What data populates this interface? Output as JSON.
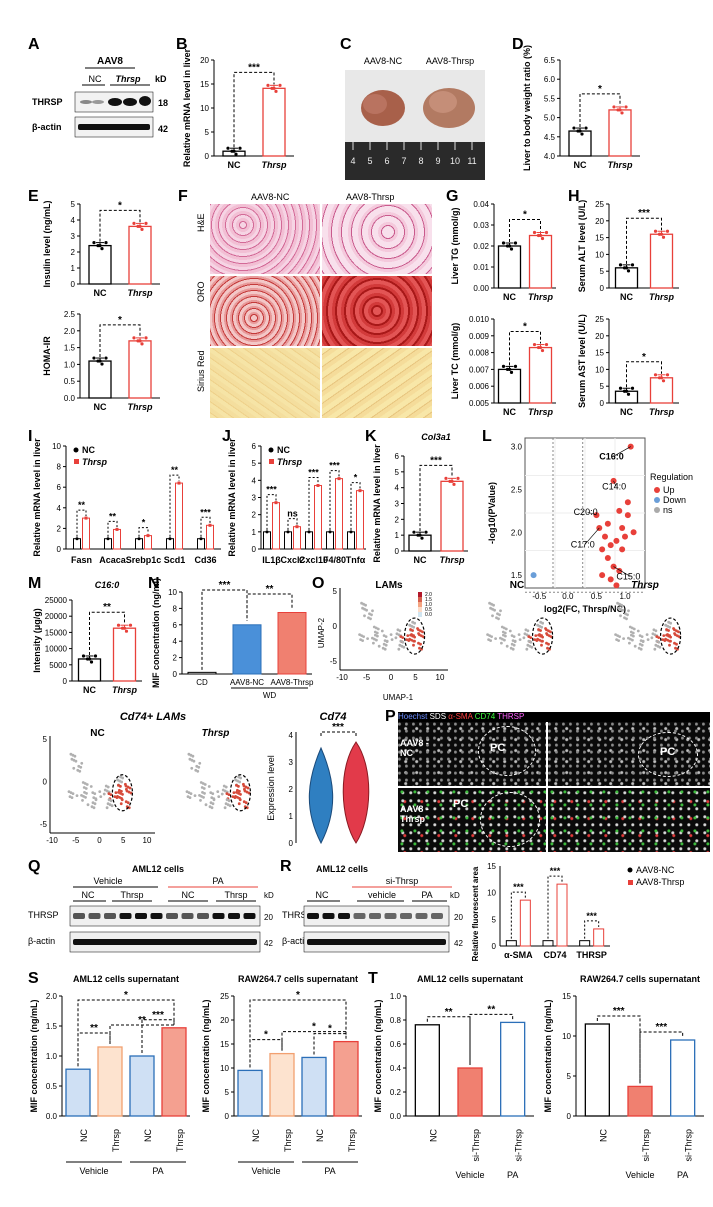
{
  "panels": {
    "A": {
      "label": "A",
      "group": "AAV8",
      "nc": "NC",
      "thrsp": "Thrsp",
      "kd": "kD",
      "rows": [
        {
          "name": "THRSP",
          "kd": "18"
        },
        {
          "name": "β-actin",
          "kd": "42"
        }
      ]
    },
    "B": {
      "label": "B",
      "ylabel": "Relative mRNA level in liver",
      "sig": "***",
      "categories": [
        "NC",
        "Thrsp"
      ],
      "values": [
        1,
        14.1
      ],
      "ylim": [
        0,
        20
      ],
      "yticks": [
        "0",
        "5",
        "10",
        "15",
        "20"
      ]
    },
    "C": {
      "label": "C",
      "left_title": "AAV8-NC",
      "right_title": "AAV8-Thrsp",
      "ruler": [
        "4",
        "5",
        "6",
        "7",
        "8",
        "9",
        "10",
        "11"
      ]
    },
    "D": {
      "label": "D",
      "ylabel": "Liver to body weight ratio (%)",
      "sig": "*",
      "categories": [
        "NC",
        "Thrsp"
      ],
      "values": [
        4.65,
        5.2
      ],
      "ylim": [
        4.0,
        6.5
      ],
      "yticks": [
        "4.0",
        "4.5",
        "5.0",
        "5.5",
        "6.0",
        "6.5"
      ]
    },
    "E": {
      "label": "E",
      "top": {
        "ylabel": "Insulin level (ng/mL)",
        "sig": "*",
        "categories": [
          "NC",
          "Thrsp"
        ],
        "values": [
          2.4,
          3.6
        ],
        "ylim": [
          0,
          5
        ],
        "yticks": [
          "0",
          "1",
          "2",
          "3",
          "4",
          "5"
        ]
      },
      "bottom": {
        "ylabel": "HOMA-IR",
        "sig": "*",
        "categories": [
          "NC",
          "Thrsp"
        ],
        "values": [
          1.1,
          1.7
        ],
        "ylim": [
          0,
          2.5
        ],
        "yticks": [
          "0.0",
          "0.5",
          "1.0",
          "1.5",
          "2.0",
          "2.5"
        ]
      }
    },
    "F": {
      "label": "F",
      "left_title": "AAV8-NC",
      "right_title": "AAV8-Thrsp",
      "rows": [
        "H&E",
        "ORO",
        "Sirius Red"
      ]
    },
    "G": {
      "label": "G",
      "top": {
        "ylabel": "Liver TG (mmol/g)",
        "sig": "*",
        "categories": [
          "NC",
          "Thrsp"
        ],
        "values": [
          0.02,
          0.025
        ],
        "ylim": [
          0,
          0.04
        ],
        "yticks": [
          "0.00",
          "0.01",
          "0.02",
          "0.03",
          "0.04"
        ]
      },
      "bottom": {
        "ylabel": "Liver TC (mmol/g)",
        "sig": "*",
        "categories": [
          "NC",
          "Thrsp"
        ],
        "values": [
          0.007,
          0.0083
        ],
        "ylim": [
          0.005,
          0.01
        ],
        "yticks": [
          "0.005",
          "0.006",
          "0.007",
          "0.008",
          "0.009",
          "0.010"
        ]
      }
    },
    "H": {
      "label": "H",
      "top": {
        "ylabel": "Serum ALT level (U/L)",
        "sig": "***",
        "categories": [
          "NC",
          "Thrsp"
        ],
        "values": [
          6,
          16
        ],
        "ylim": [
          0,
          25
        ],
        "yticks": [
          "0",
          "5",
          "10",
          "15",
          "20",
          "25"
        ]
      },
      "bottom": {
        "ylabel": "Serum AST level (U/L)",
        "sig": "*",
        "categories": [
          "NC",
          "Thrsp"
        ],
        "values": [
          3.5,
          7.5
        ],
        "ylim": [
          0,
          25
        ],
        "yticks": [
          "0",
          "5",
          "10",
          "15",
          "20",
          "25"
        ]
      }
    },
    "I": {
      "label": "I",
      "ylabel": "Relative mRNA level in liver",
      "legend": [
        "NC",
        "Thrsp"
      ],
      "categories": [
        "Fasn",
        "Acaca",
        "Srebp1c",
        "Scd1",
        "Cd36"
      ],
      "nc": [
        1,
        1,
        1,
        1,
        1
      ],
      "thrsp": [
        3,
        1.9,
        1.3,
        6.4,
        2.3
      ],
      "sig": [
        "**",
        "**",
        "*",
        "**",
        "***"
      ],
      "ylim": [
        0,
        10
      ],
      "yticks": [
        "0",
        "2",
        "4",
        "6",
        "8",
        "10"
      ]
    },
    "J": {
      "label": "J",
      "ylabel": "Relative mRNA level in liver",
      "legend": [
        "NC",
        "Thrsp"
      ],
      "categories": [
        "IL1β",
        "Cxcl2",
        "Cxcl10",
        "F4/80",
        "Tnfα"
      ],
      "nc": [
        1,
        1,
        1,
        1,
        1
      ],
      "thrsp": [
        2.7,
        1.3,
        3.7,
        4.1,
        3.4
      ],
      "sig": [
        "***",
        "ns",
        "***",
        "***",
        "*"
      ],
      "ylim": [
        0,
        6
      ],
      "yticks": [
        "0",
        "1",
        "2",
        "3",
        "4",
        "5",
        "6"
      ]
    },
    "K": {
      "label": "K",
      "title": "Col3a1",
      "ylabel": "Relative mRNA level in liver",
      "sig": "***",
      "categories": [
        "NC",
        "Thrsp"
      ],
      "values": [
        1,
        4.4
      ],
      "ylim": [
        0,
        6
      ],
      "yticks": [
        "0",
        "1",
        "2",
        "3",
        "4",
        "5",
        "6"
      ]
    },
    "L": {
      "label": "L",
      "xlabel": "log2(FC, Thrsp/NC)",
      "ylabel": "-log10(PValue)",
      "legend_title": "Regulation",
      "legend": [
        "Up",
        "Down",
        "ns"
      ],
      "annotations": [
        "C16:0",
        "C14:0",
        "C20:0",
        "C17:0",
        "C15:0"
      ],
      "xticks": [
        "-0.5",
        "0.0",
        "0.5",
        "1.0"
      ],
      "yticks": [
        "1.5",
        "2.0",
        "2.5",
        "3.0"
      ]
    },
    "M": {
      "label": "M",
      "title": "C16:0",
      "ylabel": "Intensity (μg/g)",
      "sig": "**",
      "categories": [
        "NC",
        "Thrsp"
      ],
      "values": [
        6800,
        16300
      ],
      "ylim": [
        0,
        25000
      ],
      "yticks": [
        "0",
        "5000",
        "10000",
        "15000",
        "20000",
        "25000"
      ]
    },
    "N": {
      "label": "N",
      "ylabel": "MIF concentration (ng/ml)",
      "sig1": "***",
      "sig2": "**",
      "categories": [
        "CD",
        "AAV8-NC",
        "AAV8-Thrsp"
      ],
      "group": "WD",
      "values": [
        0.2,
        6,
        7.5
      ],
      "ylim": [
        0,
        10
      ],
      "yticks": [
        "0",
        "2",
        "4",
        "6",
        "8",
        "10"
      ]
    },
    "O": {
      "label": "O",
      "titles": [
        "LAMs",
        "NC",
        "Thrsp"
      ],
      "xlabel": "UMAP-1",
      "ylabel": "UMAP-2",
      "xticks": [
        "-10",
        "-5",
        "0",
        "5",
        "10"
      ],
      "yticks": [
        "-5",
        "0",
        "5"
      ],
      "scale": [
        "2.0",
        "1.5",
        "1.0",
        "0.5",
        "0.0"
      ]
    },
    "O2": {
      "title": "Cd74+ LAMs",
      "titles": [
        "NC",
        "Thrsp"
      ],
      "violin_title": "Cd74",
      "violin_ylabel": "Expression level",
      "sig": "***",
      "xticks": [
        "-10",
        "-5",
        "0",
        "5",
        "10"
      ],
      "yticks": [
        "-5",
        "0",
        "5"
      ],
      "violin_yticks": [
        "0",
        "1",
        "2",
        "3",
        "4"
      ]
    },
    "P": {
      "label": "P",
      "channels": [
        "Hoechst",
        "SDS",
        "α-SMA",
        "CD74",
        "THRSP"
      ],
      "rows": [
        "AAV8 -NC",
        "AAV8 -Thrsp"
      ],
      "pc": "PC",
      "bar": {
        "ylabel": "Relative fluorescent area",
        "legend": [
          "AAV8-NC",
          "AAV8-Thrsp"
        ],
        "categories": [
          "α-SMA",
          "CD74",
          "THRSP"
        ],
        "nc": [
          1,
          1,
          1
        ],
        "thrsp": [
          8.6,
          11.6,
          3.2
        ],
        "sig": [
          "***",
          "***",
          "***"
        ],
        "ylim": [
          0,
          15
        ],
        "yticks": [
          "0",
          "5",
          "10",
          "15"
        ]
      }
    },
    "Q": {
      "label": "Q",
      "title": "AML12 cells",
      "groups": [
        "Vehicle",
        "PA"
      ],
      "subgroups": [
        "NC",
        "Thrsp",
        "NC",
        "Thrsp"
      ],
      "kd": "kD",
      "rows": [
        {
          "name": "THRSP",
          "kd": "20"
        },
        {
          "name": "β-actin",
          "kd": "42"
        }
      ]
    },
    "R": {
      "label": "R",
      "title": "AML12 cells",
      "si": "si-Thrsp",
      "groups": [
        "NC",
        "vehicle",
        "PA"
      ],
      "kd": "kD",
      "rows": [
        {
          "name": "THRSP",
          "kd": "20"
        },
        {
          "name": "β-actin",
          "kd": "42"
        }
      ]
    },
    "S": {
      "label": "S",
      "left": {
        "title": "AML12 cells supernatant",
        "ylabel": "MIF concentration (ng/mL)",
        "categories": [
          "NC",
          "Thrsp",
          "NC",
          "Thrsp"
        ],
        "groups": [
          "Vehicle",
          "PA"
        ],
        "values": [
          0.78,
          1.15,
          1.0,
          1.47
        ],
        "sig": [
          "*",
          "**",
          "**",
          "***"
        ],
        "ylim": [
          0,
          2.0
        ],
        "yticks": [
          "0.0",
          "0.5",
          "1.0",
          "1.5",
          "2.0"
        ]
      },
      "right": {
        "title": "RAW264.7 cells supernatant",
        "ylabel": "MIF concentration (ng/mL)",
        "categories": [
          "NC",
          "Thrsp",
          "NC",
          "Thrsp"
        ],
        "groups": [
          "Vehicle",
          "PA"
        ],
        "values": [
          9.5,
          13,
          12.2,
          15.5
        ],
        "sig": [
          "*",
          "*",
          "*",
          "*"
        ],
        "ylim": [
          0,
          25
        ],
        "yticks": [
          "0",
          "5",
          "10",
          "15",
          "20",
          "25"
        ]
      }
    },
    "T": {
      "label": "T",
      "left": {
        "title": "AML12 cells supernatant",
        "ylabel": "MIF concentration (ng/mL)",
        "categories": [
          "NC",
          "si-Thrsp",
          "si-Thrsp"
        ],
        "groups": [
          "Vehicle",
          "PA"
        ],
        "values": [
          0.76,
          0.4,
          0.78
        ],
        "sig": [
          "**",
          "**"
        ],
        "ylim": [
          0,
          1.0
        ],
        "yticks": [
          "0.0",
          "0.2",
          "0.4",
          "0.6",
          "0.8",
          "1.0"
        ]
      },
      "right": {
        "title": "RAW264.7 cells supernatant",
        "ylabel": "MIF concentration (ng/mL)",
        "categories": [
          "NC",
          "si-Thrsp",
          "si-Thrsp"
        ],
        "groups": [
          "Vehicle",
          "PA"
        ],
        "values": [
          11.5,
          3.7,
          9.5
        ],
        "sig": [
          "***",
          "***"
        ],
        "ylim": [
          0,
          15
        ],
        "yticks": [
          "0",
          "5",
          "10",
          "15"
        ]
      }
    }
  }
}
